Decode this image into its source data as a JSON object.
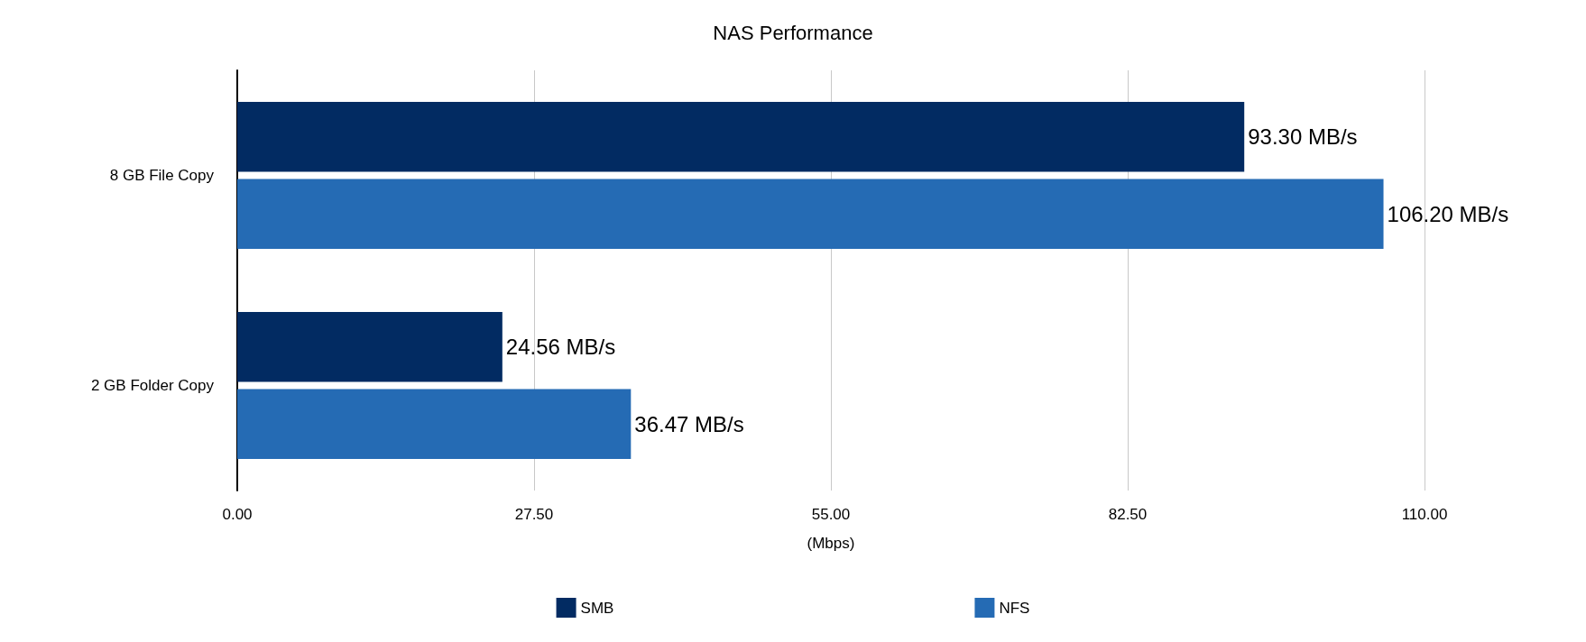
{
  "chart_data": {
    "type": "bar",
    "orientation": "horizontal",
    "title": "NAS Performance",
    "xlabel": "(Mbps)",
    "categories": [
      "8 GB File Copy",
      "2 GB Folder Copy"
    ],
    "series": [
      {
        "name": "SMB",
        "color": "#022b62",
        "values": [
          93.3,
          24.56
        ],
        "value_labels": [
          "93.30 MB/s",
          "24.56 MB/s"
        ]
      },
      {
        "name": "NFS",
        "color": "#256bb4",
        "values": [
          106.2,
          36.47
        ],
        "value_labels": [
          "106.20 MB/s",
          "36.47 MB/s"
        ]
      }
    ],
    "xlim": [
      0,
      110
    ],
    "xticks": [
      {
        "value": 0,
        "label": "0.00"
      },
      {
        "value": 27.5,
        "label": "27.50"
      },
      {
        "value": 55,
        "label": "55.00"
      },
      {
        "value": 82.5,
        "label": "82.50"
      },
      {
        "value": 110,
        "label": "110.00"
      }
    ],
    "grid": "x",
    "legend": "bottom"
  }
}
